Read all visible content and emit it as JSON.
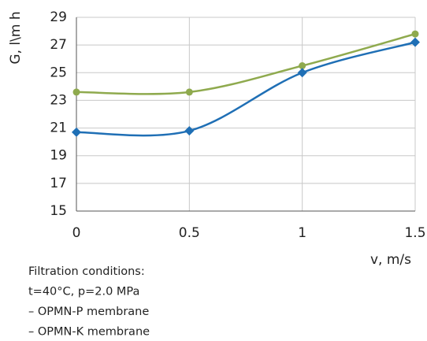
{
  "chart_data": {
    "type": "line",
    "ylabel": "G, l\\m h",
    "xlabel": "v, m/s",
    "x": [
      0,
      0.5,
      1,
      1.5
    ],
    "xlim": [
      0,
      1.5
    ],
    "xticks": [
      0,
      0.5,
      1,
      1.5
    ],
    "ylim": [
      15,
      29
    ],
    "yticks": [
      15,
      17,
      19,
      21,
      23,
      25,
      27,
      29
    ],
    "grid": true,
    "series": [
      {
        "color": "#8faa4e",
        "marker": "circle",
        "values": [
          23.6,
          23.6,
          25.5,
          27.8
        ]
      },
      {
        "color": "#1f6fb5",
        "marker": "diamond",
        "values": [
          20.7,
          20.8,
          25.0,
          27.2
        ]
      }
    ],
    "annotations": [
      "Filtration conditions:",
      "t=40°C, p=2.0 MPa",
      "– OPMN-P membrane",
      "– OPMN-K membrane"
    ]
  }
}
